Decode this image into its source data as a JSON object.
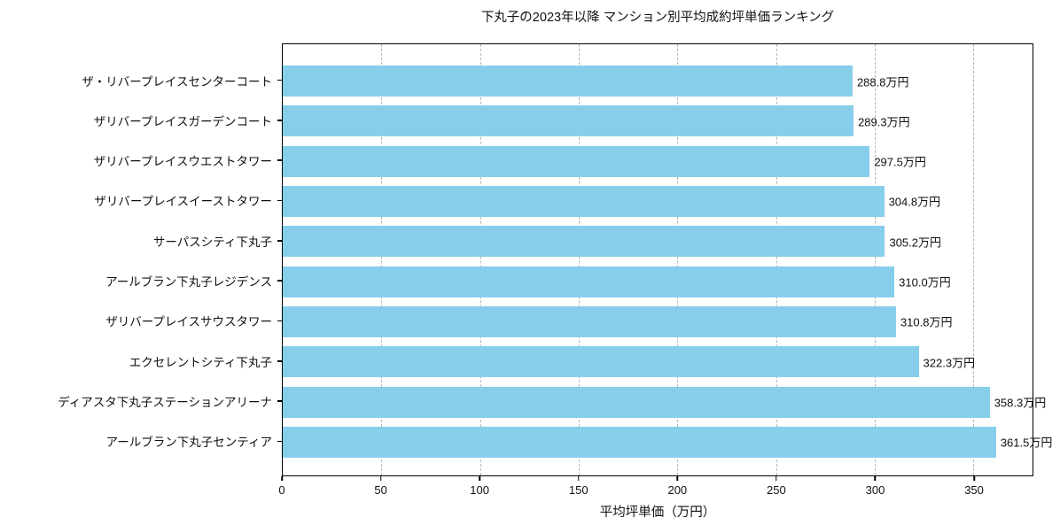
{
  "chart_data": {
    "type": "bar",
    "orientation": "horizontal",
    "title": "下丸子の2023年以降 マンション別平均成約坪単価ランキング",
    "xlabel": "平均坪単価（万円）",
    "ylabel": "",
    "categories": [
      "ザ・リバープレイスセンターコート",
      "ザリバープレイスガーデンコート",
      "ザリバープレイスウエストタワー",
      "ザリバープレイスイーストタワー",
      "サーパスシティ下丸子",
      "アールブラン下丸子レジデンス",
      "ザリバープレイスサウスタワー",
      "エクセレントシティ下丸子",
      "ディアスタ下丸子ステーションアリーナ",
      "アールブラン下丸子センティア"
    ],
    "values": [
      288.8,
      289.3,
      297.5,
      304.8,
      305.2,
      310.0,
      310.8,
      322.3,
      358.3,
      361.5
    ],
    "value_suffix": "万円",
    "xticks": [
      0,
      50,
      100,
      150,
      200,
      250,
      300,
      350
    ],
    "xlim": [
      0,
      380
    ],
    "bar_color": "#87CEEB",
    "grid": "vertical-dashed",
    "gridline_color": "#b5b5b5",
    "border_color": "#000000",
    "background_color": "#ffffff"
  }
}
